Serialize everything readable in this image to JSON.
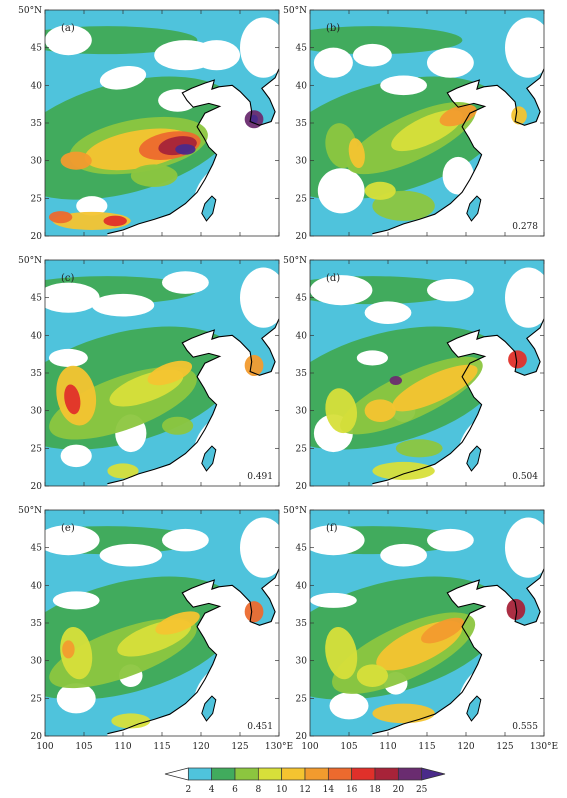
{
  "figure": {
    "panels": [
      {
        "label": "(a)",
        "score": ""
      },
      {
        "label": "(b)",
        "score": "0.278"
      },
      {
        "label": "(c)",
        "score": "0.491"
      },
      {
        "label": "(d)",
        "score": "0.504"
      },
      {
        "label": "(e)",
        "score": "0.451"
      },
      {
        "label": "(f)",
        "score": "0.555"
      }
    ],
    "lat_ticks": [
      "20",
      "25",
      "30",
      "35",
      "40",
      "45",
      "50°N"
    ],
    "lon_ticks": [
      "100",
      "105",
      "110",
      "115",
      "120",
      "125",
      "130°E"
    ],
    "lon_range": [
      100,
      130
    ],
    "lat_range": [
      20,
      50
    ],
    "colorbar": {
      "levels": [
        "2",
        "4",
        "6",
        "8",
        "10",
        "12",
        "14",
        "16",
        "18",
        "20",
        "25"
      ],
      "colors": [
        "#ffffff",
        "#4fc3dc",
        "#41ab5d",
        "#8cc63f",
        "#d7df3a",
        "#f4c430",
        "#f29b2e",
        "#ec6a2e",
        "#e0302a",
        "#a72339",
        "#6a2c70",
        "#4a2a8a"
      ]
    }
  }
}
